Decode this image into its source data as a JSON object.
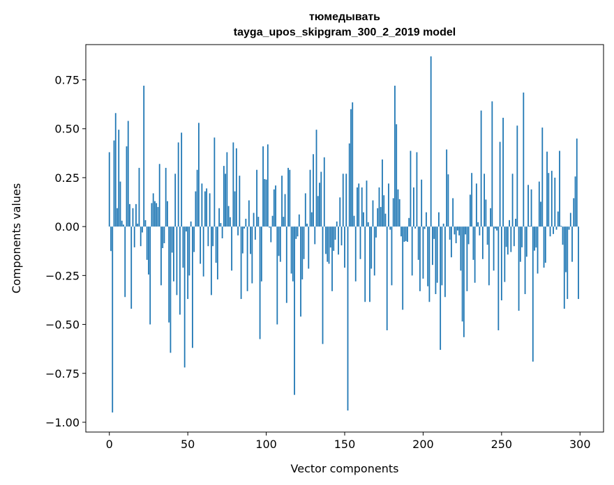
{
  "chart_data": {
    "type": "bar",
    "title_line1": "тюмедывать",
    "title_line2": "tayga_upos_skipgram_300_2_2019 model",
    "xlabel": "Vector components",
    "ylabel": "Components values",
    "xlim": [
      -15,
      315
    ],
    "ylim": [
      -1.05,
      0.93
    ],
    "xticks": [
      0,
      50,
      100,
      150,
      200,
      250,
      300
    ],
    "yticks": [
      0.75,
      0.5,
      0.25,
      0.0,
      -0.25,
      -0.5,
      -0.75,
      -1.0
    ],
    "ytick_labels": [
      "0.75",
      "0.50",
      "0.25",
      "0.00",
      "−0.25",
      "−0.50",
      "−0.75",
      "−1.00"
    ],
    "grid": false,
    "color": "#1f77b4",
    "values": [
      0.38,
      -0.125,
      -0.95,
      0.44,
      0.58,
      0.094,
      0.495,
      0.23,
      0.03,
      0.01,
      -0.36,
      0.41,
      0.54,
      0.115,
      -0.42,
      0.094,
      -0.106,
      0.115,
      0.015,
      0.3,
      -0.1,
      -0.03,
      0.72,
      0.033,
      -0.17,
      -0.245,
      -0.5,
      0.12,
      0.17,
      0.13,
      0.12,
      0.1,
      0.32,
      -0.3,
      -0.11,
      -0.085,
      0.3,
      0.13,
      -0.49,
      -0.645,
      -0.133,
      -0.28,
      0.27,
      -0.35,
      0.43,
      -0.45,
      0.48,
      -0.21,
      -0.72,
      -0.025,
      -0.37,
      -0.25,
      0.026,
      -0.62,
      -0.13,
      0.18,
      0.29,
      0.53,
      -0.19,
      0.22,
      -0.255,
      0.18,
      0.195,
      -0.1,
      0.17,
      -0.35,
      -0.1,
      0.455,
      -0.185,
      -0.27,
      0.094,
      0.018,
      -0.06,
      0.31,
      0.27,
      0.38,
      0.105,
      0.048,
      -0.225,
      0.43,
      0.18,
      0.4,
      -0.045,
      0.26,
      -0.37,
      -0.137,
      -0.01,
      0.04,
      -0.33,
      0.134,
      -0.14,
      -0.29,
      0.07,
      -0.067,
      0.29,
      0.05,
      -0.575,
      -0.28,
      0.41,
      0.243,
      0.24,
      0.42,
      -0.005,
      -0.08,
      0.055,
      0.19,
      0.21,
      -0.5,
      -0.15,
      -0.18,
      0.26,
      0.05,
      0.166,
      -0.39,
      0.3,
      0.29,
      -0.24,
      -0.28,
      -0.86,
      -0.063,
      -0.05,
      0.062,
      -0.46,
      -0.27,
      -0.166,
      0.17,
      0.015,
      -0.215,
      0.29,
      0.073,
      0.37,
      -0.09,
      0.495,
      0.156,
      0.224,
      0.28,
      -0.6,
      0.354,
      -0.14,
      -0.18,
      -0.19,
      -0.107,
      -0.33,
      -0.124,
      -0.067,
      0.026,
      -0.143,
      0.149,
      -0.096,
      0.27,
      -0.21,
      0.27,
      -0.94,
      0.425,
      0.6,
      0.635,
      0.055,
      -0.28,
      0.2,
      0.22,
      -0.166,
      0.2,
      0.073,
      -0.385,
      0.235,
      0.022,
      -0.385,
      -0.215,
      0.134,
      -0.25,
      -0.056,
      0.094,
      0.2,
      0.1,
      0.343,
      0.16,
      0.066,
      -0.53,
      0.22,
      -0.016,
      -0.3,
      0.145,
      0.72,
      0.523,
      0.19,
      0.14,
      -0.05,
      -0.425,
      -0.078,
      -0.074,
      -0.078,
      0.044,
      0.387,
      -0.25,
      0.2,
      -0.01,
      0.38,
      -0.17,
      -0.33,
      0.24,
      -0.266,
      -0.012,
      0.073,
      -0.305,
      -0.385,
      0.87,
      -0.196,
      -0.063,
      -0.345,
      -0.287,
      0.073,
      -0.63,
      -0.3,
      0.015,
      -0.36,
      0.394,
      0.267,
      -0.067,
      -0.157,
      0.145,
      -0.04,
      -0.085,
      -0.02,
      -0.045,
      -0.225,
      -0.485,
      -0.565,
      -0.04,
      -0.33,
      -0.09,
      0.163,
      0.274,
      -0.17,
      -0.287,
      0.22,
      0.022,
      -0.045,
      0.593,
      -0.166,
      0.27,
      0.138,
      -0.093,
      -0.3,
      0.094,
      0.64,
      -0.225,
      -0.01,
      -0.02,
      -0.53,
      0.433,
      -0.377,
      0.556,
      -0.283,
      -0.104,
      -0.143,
      0.033,
      -0.13,
      0.27,
      -0.1,
      0.04,
      0.516,
      -0.43,
      -0.18,
      -0.106,
      0.685,
      -0.345,
      -0.154,
      0.213,
      0.004,
      0.19,
      -0.69,
      -0.123,
      -0.107,
      -0.24,
      0.23,
      0.127,
      0.506,
      -0.21,
      -0.185,
      0.383,
      0.274,
      -0.05,
      0.285,
      -0.038,
      0.25,
      -0.016,
      0.077,
      0.387,
      0.004,
      -0.093,
      -0.42,
      -0.233,
      -0.37,
      -0.016,
      0.07,
      -0.18,
      0.145,
      0.256,
      0.45,
      -0.37
    ]
  }
}
